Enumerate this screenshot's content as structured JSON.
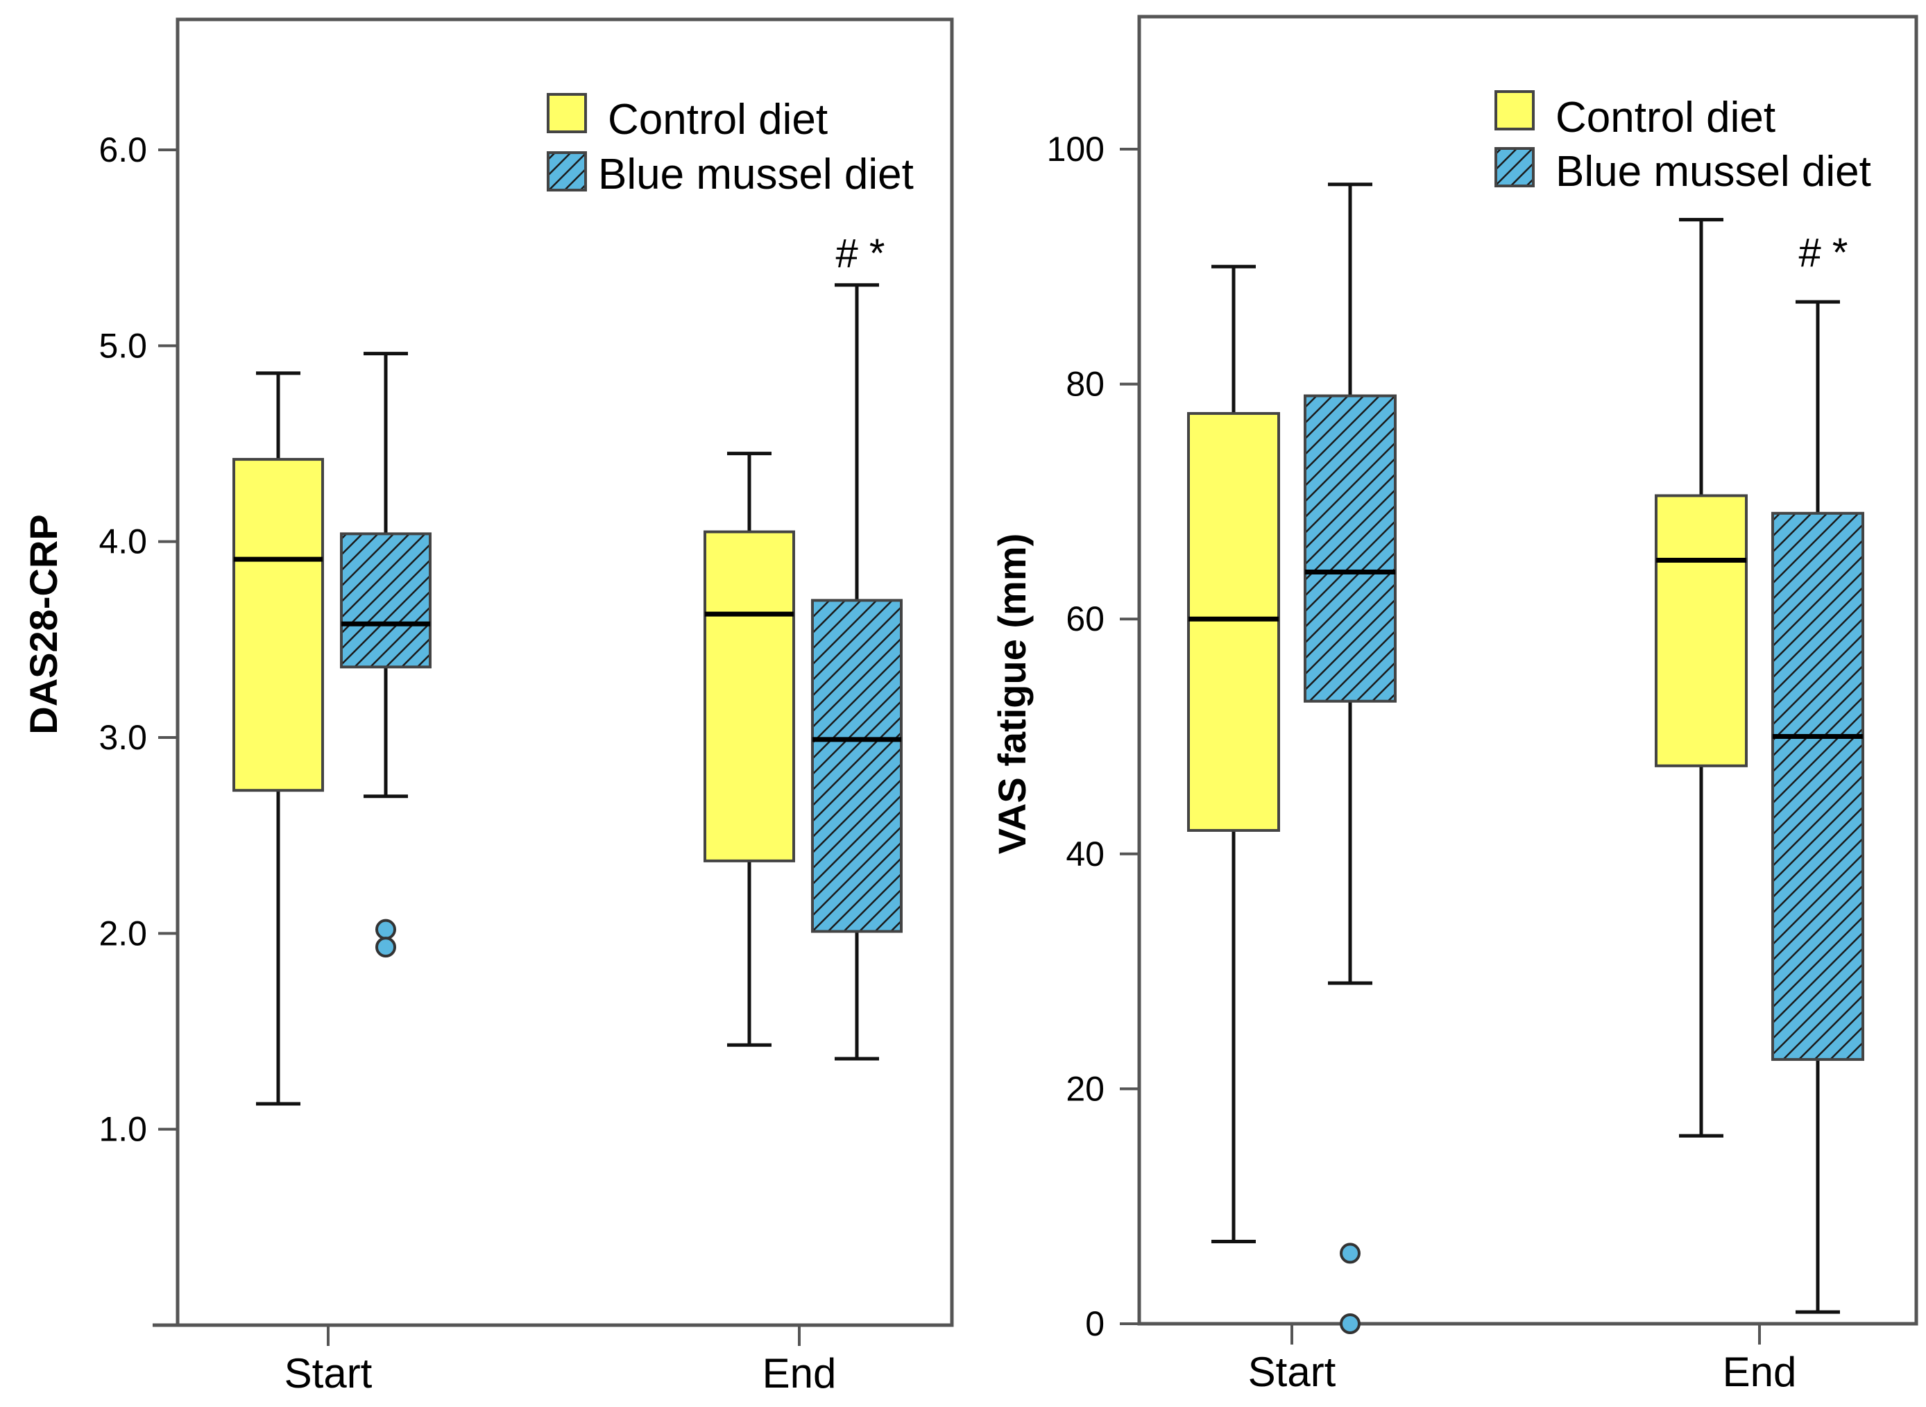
{
  "chart_data": [
    {
      "type": "box",
      "ylabel": "DAS28-CRP",
      "ylim": [
        0.0,
        6.6
      ],
      "yticks": [
        1.0,
        2.0,
        3.0,
        4.0,
        5.0,
        6.0
      ],
      "ytick_labels": [
        "1.0",
        "2.0",
        "3.0",
        "4.0",
        "5.0",
        "6.0"
      ],
      "categories": [
        "Start",
        "End"
      ],
      "legend": [
        {
          "name": "Control diet",
          "color": "#ffff66",
          "pattern": "solid"
        },
        {
          "name": "Blue mussel diet",
          "color": "#5bb8e0",
          "pattern": "hatched"
        }
      ],
      "legend_position": "top-right",
      "annotations": [
        {
          "category": "End",
          "series": "Blue mussel diet",
          "text": "# *"
        }
      ],
      "series": [
        {
          "name": "Control diet",
          "boxes": [
            {
              "category": "Start",
              "min": 1.13,
              "q1": 2.73,
              "median": 3.91,
              "q3": 4.42,
              "max": 4.86,
              "outliers": []
            },
            {
              "category": "End",
              "min": 1.43,
              "q1": 2.37,
              "median": 3.63,
              "q3": 4.05,
              "max": 4.45,
              "outliers": []
            }
          ]
        },
        {
          "name": "Blue mussel diet",
          "boxes": [
            {
              "category": "Start",
              "min": 2.7,
              "q1": 3.36,
              "median": 3.58,
              "q3": 4.04,
              "max": 4.96,
              "outliers": [
                2.02,
                1.93
              ]
            },
            {
              "category": "End",
              "min": 1.36,
              "q1": 2.01,
              "median": 2.99,
              "q3": 3.7,
              "max": 5.31,
              "outliers": []
            }
          ]
        }
      ]
    },
    {
      "type": "box",
      "ylabel": "VAS fatigue (mm)",
      "ylim": [
        0,
        111
      ],
      "yticks": [
        0,
        20,
        40,
        60,
        80,
        100
      ],
      "ytick_labels": [
        "0",
        "20",
        "40",
        "60",
        "80",
        "100"
      ],
      "categories": [
        "Start",
        "End"
      ],
      "legend": [
        {
          "name": "Control diet",
          "color": "#ffff66",
          "pattern": "solid"
        },
        {
          "name": "Blue mussel diet",
          "color": "#5bb8e0",
          "pattern": "hatched"
        }
      ],
      "legend_position": "top-right",
      "annotations": [
        {
          "category": "End",
          "series": "Blue mussel diet",
          "text": "# *"
        }
      ],
      "series": [
        {
          "name": "Control diet",
          "boxes": [
            {
              "category": "Start",
              "min": 7,
              "q1": 42,
              "median": 60,
              "q3": 77.5,
              "max": 90,
              "outliers": []
            },
            {
              "category": "End",
              "min": 16,
              "q1": 47.5,
              "median": 65,
              "q3": 70.5,
              "max": 94,
              "outliers": []
            }
          ]
        },
        {
          "name": "Blue mussel diet",
          "boxes": [
            {
              "category": "Start",
              "min": 29,
              "q1": 53,
              "median": 64,
              "q3": 79,
              "max": 97,
              "outliers": [
                6,
                0
              ]
            },
            {
              "category": "End",
              "min": 1,
              "q1": 22.5,
              "median": 50,
              "q3": 69,
              "max": 87,
              "outliers": []
            }
          ]
        }
      ]
    }
  ]
}
